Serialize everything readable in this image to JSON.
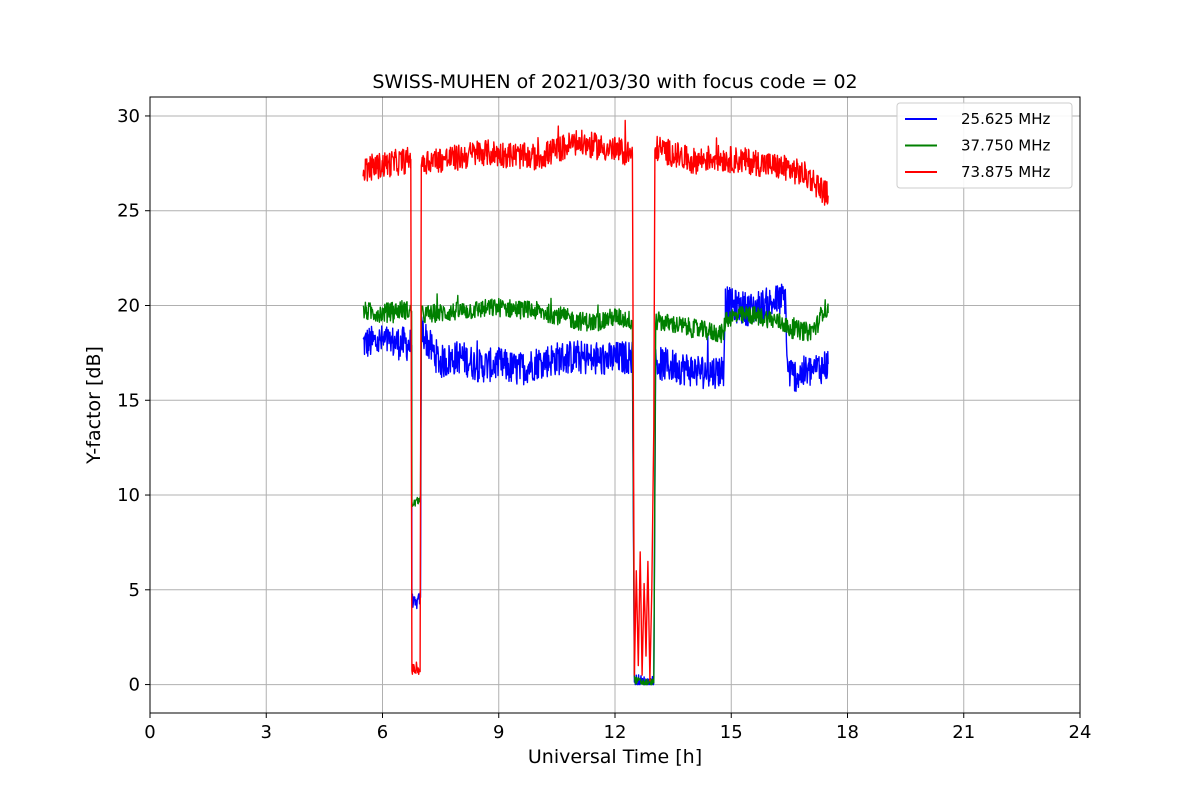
{
  "chart_data": {
    "type": "line",
    "title": "SWISS-MUHEN of 2021/03/30 with focus code = 02",
    "xlabel": "Universal Time [h]",
    "ylabel": "Y-factor [dB]",
    "xlim": [
      0,
      24
    ],
    "ylim": [
      -1.5,
      31
    ],
    "xticks": [
      0,
      3,
      6,
      9,
      12,
      15,
      18,
      21,
      24
    ],
    "yticks": [
      0,
      5,
      10,
      15,
      20,
      25,
      30
    ],
    "grid": true,
    "legend_position": "top-right",
    "series": [
      {
        "name": "25.625 MHz",
        "color": "#0000ff",
        "noise": 0.9,
        "x": [
          5.5,
          6.0,
          6.5,
          6.75,
          6.76,
          6.85,
          6.98,
          7.0,
          7.2,
          7.5,
          8.0,
          8.5,
          9.0,
          9.5,
          10.0,
          10.5,
          11.0,
          11.5,
          12.0,
          12.45,
          12.5,
          12.55,
          12.75,
          13.0,
          13.05,
          13.2,
          13.5,
          14.0,
          14.5,
          14.8,
          14.85,
          15.0,
          15.5,
          16.0,
          16.4,
          16.45,
          16.6,
          17.0,
          17.5
        ],
        "y": [
          18.0,
          18.1,
          18.0,
          17.9,
          4.5,
          4.2,
          4.6,
          18.8,
          17.9,
          17.0,
          17.3,
          16.8,
          16.9,
          16.6,
          17.0,
          17.2,
          17.3,
          17.1,
          17.2,
          17.3,
          0.3,
          0.2,
          0.1,
          0.1,
          17.0,
          16.9,
          16.8,
          16.6,
          16.5,
          16.6,
          20.2,
          20.0,
          19.8,
          20.1,
          20.4,
          16.6,
          16.3,
          16.5,
          16.9
        ]
      },
      {
        "name": "37.750 MHz",
        "color": "#008000",
        "noise": 0.5,
        "x": [
          5.5,
          6.0,
          6.5,
          6.75,
          6.76,
          6.85,
          6.98,
          7.0,
          7.5,
          8.0,
          8.5,
          9.0,
          9.5,
          10.0,
          10.5,
          11.0,
          11.5,
          12.0,
          12.45,
          12.5,
          12.55,
          12.75,
          13.0,
          13.05,
          13.5,
          14.0,
          14.5,
          14.8,
          14.85,
          15.0,
          15.5,
          16.0,
          16.4,
          16.45,
          17.0,
          17.2,
          17.4,
          17.5
        ],
        "y": [
          19.7,
          19.6,
          19.8,
          19.7,
          9.5,
          9.6,
          9.8,
          19.5,
          19.6,
          19.7,
          19.8,
          19.9,
          19.8,
          19.7,
          19.5,
          19.2,
          19.1,
          19.4,
          19.2,
          0.3,
          0.2,
          0.1,
          0.1,
          19.2,
          19.0,
          18.8,
          18.6,
          18.5,
          19.3,
          19.4,
          19.5,
          19.3,
          19.0,
          18.8,
          18.6,
          18.9,
          19.9,
          19.6
        ]
      },
      {
        "name": "73.875 MHz",
        "color": "#ff0000",
        "noise": 0.7,
        "x": [
          5.5,
          6.0,
          6.5,
          6.73,
          6.76,
          6.85,
          6.97,
          7.0,
          7.5,
          8.0,
          8.5,
          9.0,
          9.5,
          10.0,
          10.5,
          11.0,
          11.5,
          12.0,
          12.45,
          12.5,
          12.55,
          12.6,
          12.65,
          12.7,
          12.75,
          12.8,
          12.85,
          12.9,
          12.95,
          13.0,
          13.03,
          13.1,
          13.5,
          14.0,
          14.5,
          15.0,
          15.5,
          16.0,
          16.5,
          17.0,
          17.5
        ],
        "y": [
          27.2,
          27.4,
          27.6,
          27.7,
          0.8,
          0.8,
          0.8,
          27.6,
          27.7,
          27.8,
          28.1,
          28.0,
          27.9,
          27.8,
          28.2,
          28.6,
          28.4,
          28.2,
          28.0,
          0.5,
          6.0,
          1.0,
          7.0,
          0.5,
          5.5,
          1.5,
          6.5,
          0.2,
          5.0,
          13.5,
          28.1,
          28.3,
          28.0,
          27.6,
          27.8,
          27.7,
          27.6,
          27.4,
          27.2,
          26.8,
          25.8
        ]
      }
    ]
  }
}
